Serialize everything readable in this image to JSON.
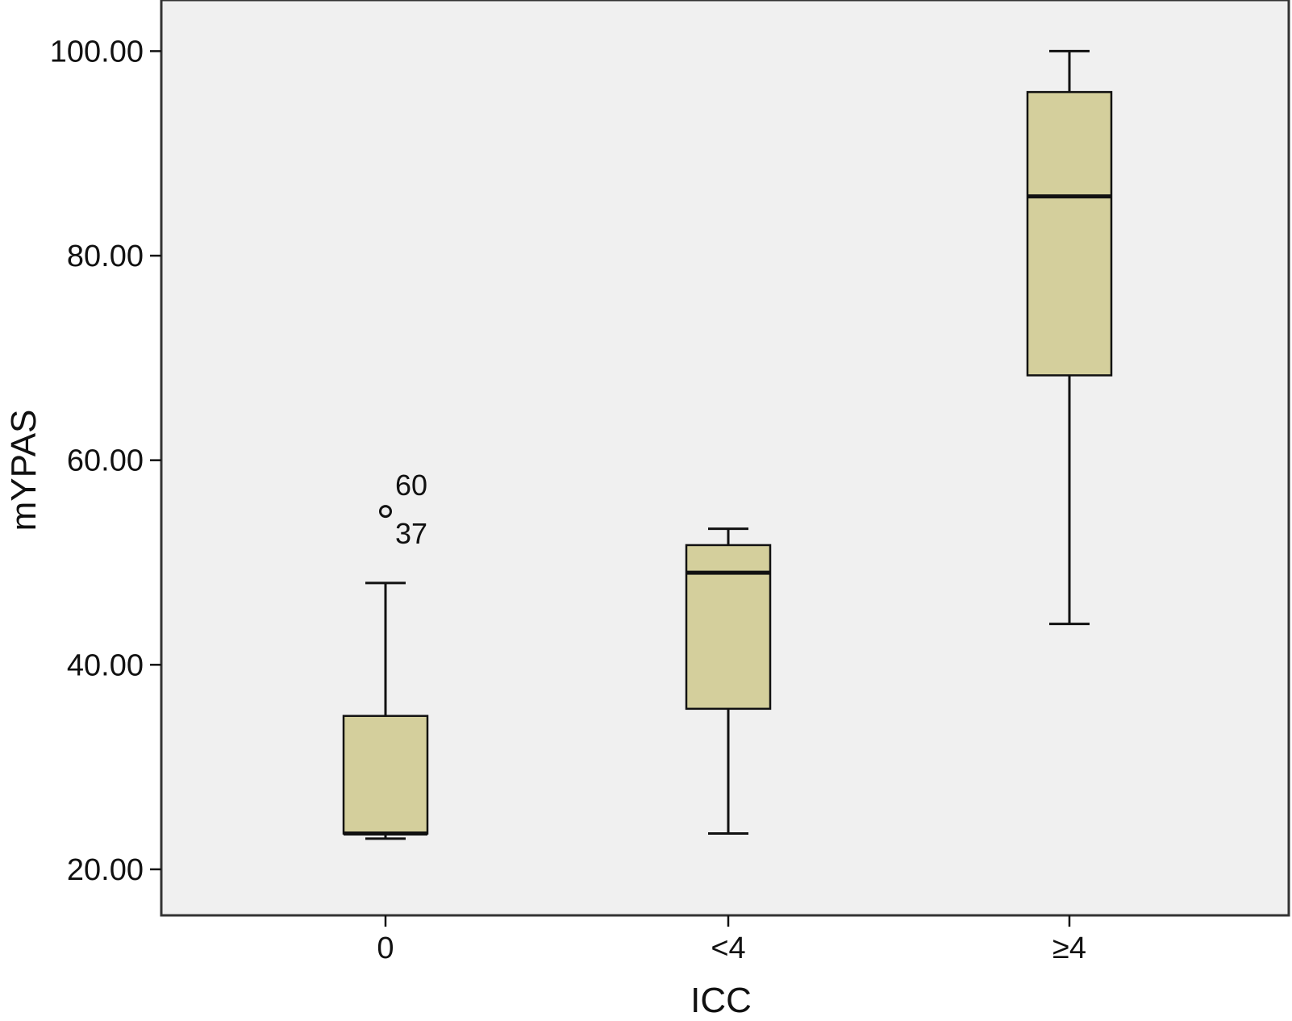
{
  "chart_data": {
    "type": "boxplot",
    "title": "",
    "xlabel": "ICC",
    "ylabel": "mYPAS",
    "categories": [
      "0",
      "<4",
      "≥4"
    ],
    "ylim": [
      15.5,
      105
    ],
    "yticks": [
      20,
      40,
      60,
      80,
      100
    ],
    "ytick_labels": [
      "20.00",
      "40.00",
      "60.00",
      "80.00",
      "100.00"
    ],
    "grid": false,
    "legend": "none",
    "colors": {
      "plot_background": "#f0f0f0",
      "box_fill": "#d4cf9c",
      "stroke": "#111111"
    },
    "boxes": [
      {
        "category": "0",
        "whisker_low": 23.0,
        "q1": 23.5,
        "median": 23.5,
        "q3": 35.0,
        "whisker_high": 48.0
      },
      {
        "category": "<4",
        "whisker_low": 23.5,
        "q1": 35.7,
        "median": 49.0,
        "q3": 51.7,
        "whisker_high": 53.3
      },
      {
        "category": "≥4",
        "whisker_low": 44.0,
        "q1": 68.3,
        "median": 85.8,
        "q3": 96.0,
        "whisker_high": 100.0
      }
    ],
    "outliers": [
      {
        "category": "0",
        "value": 55.0,
        "labels": [
          "60",
          "37"
        ]
      }
    ]
  }
}
